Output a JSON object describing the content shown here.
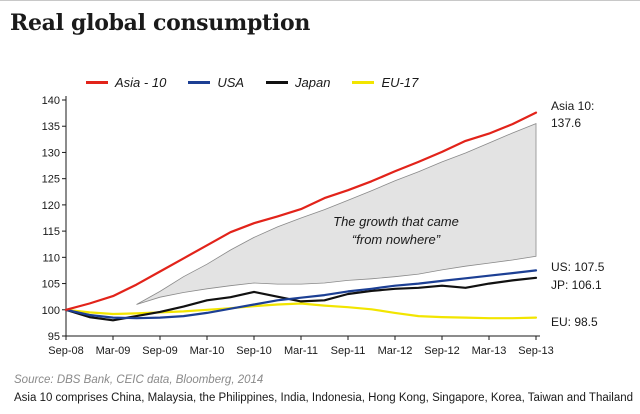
{
  "title": "Real global consumption",
  "source": "Source: DBS Bank, CEIC data, Bloomberg, 2014",
  "footnote": "Asia 10 comprises China, Malaysia, the Philippines, India, Indonesia, Hong Kong, Singapore, Korea, Taiwan and Thailand",
  "colors": {
    "asia": "#e2231a",
    "usa": "#1c3f94",
    "japan": "#111111",
    "eu": "#f2e500",
    "gap_fill": "#e3e3e3",
    "gap_stroke": "#8a8a8a"
  },
  "chart_data": {
    "type": "line",
    "title": "Real global consumption",
    "ylim": [
      95,
      140
    ],
    "yticks": [
      95,
      100,
      105,
      110,
      115,
      120,
      125,
      130,
      135,
      140
    ],
    "xtick_labels": [
      "Sep-08",
      "Mar-09",
      "Sep-09",
      "Mar-10",
      "Sep-10",
      "Mar-11",
      "Sep-11",
      "Mar-12",
      "Sep-12",
      "Mar-13",
      "Sep-13"
    ],
    "x": [
      "Sep-08",
      "Dec-08",
      "Mar-09",
      "Jun-09",
      "Sep-09",
      "Dec-09",
      "Mar-10",
      "Jun-10",
      "Sep-10",
      "Dec-10",
      "Mar-11",
      "Jun-11",
      "Sep-11",
      "Dec-11",
      "Mar-12",
      "Jun-12",
      "Sep-12",
      "Dec-12",
      "Mar-13",
      "Jun-13",
      "Sep-13"
    ],
    "series": [
      {
        "name": "Asia - 10",
        "color": "#e2231a",
        "values": [
          100,
          101.2,
          102.6,
          104.8,
          107.3,
          109.8,
          112.3,
          114.8,
          116.5,
          117.8,
          119.2,
          121.3,
          122.8,
          124.5,
          126.4,
          128.2,
          130.1,
          132.2,
          133.6,
          135.4,
          137.6
        ]
      },
      {
        "name": "USA",
        "color": "#1c3f94",
        "values": [
          100,
          99.0,
          98.5,
          98.4,
          98.5,
          98.8,
          99.4,
          100.2,
          101.0,
          101.8,
          102.3,
          102.8,
          103.5,
          104.0,
          104.6,
          105.0,
          105.5,
          106.0,
          106.5,
          107.0,
          107.5
        ]
      },
      {
        "name": "Japan",
        "color": "#111111",
        "values": [
          100,
          98.6,
          98.0,
          98.8,
          99.6,
          100.6,
          101.8,
          102.4,
          103.4,
          102.5,
          101.6,
          101.8,
          103.0,
          103.6,
          104.0,
          104.2,
          104.6,
          104.2,
          105.0,
          105.6,
          106.1
        ]
      },
      {
        "name": "EU-17",
        "color": "#f2e500",
        "values": [
          100,
          99.5,
          99.2,
          99.3,
          99.5,
          99.7,
          100.0,
          100.3,
          100.7,
          101.0,
          101.2,
          100.8,
          100.5,
          100.1,
          99.4,
          98.8,
          98.6,
          98.5,
          98.4,
          98.4,
          98.5
        ]
      }
    ],
    "gap_band": {
      "x": [
        "Jun-09",
        "Sep-09",
        "Dec-09",
        "Mar-10",
        "Jun-10",
        "Sep-10",
        "Dec-10",
        "Mar-11",
        "Jun-11",
        "Sep-11",
        "Dec-11",
        "Mar-12",
        "Jun-12",
        "Sep-12",
        "Dec-12",
        "Mar-13",
        "Jun-13",
        "Sep-13"
      ],
      "upper": [
        101.0,
        103.5,
        106.3,
        108.7,
        111.4,
        113.8,
        115.8,
        117.5,
        119.1,
        120.9,
        122.7,
        124.6,
        126.3,
        128.2,
        129.9,
        131.8,
        133.7,
        135.5
      ],
      "lower": [
        101.0,
        102.4,
        103.3,
        104.0,
        104.6,
        105.1,
        104.9,
        104.9,
        105.1,
        105.6,
        105.9,
        106.3,
        106.8,
        107.6,
        108.3,
        108.9,
        109.5,
        110.2
      ],
      "label_line1": "The growth that came",
      "label_line2": "“from nowhere”"
    },
    "end_labels": [
      {
        "line1": "Asia 10:",
        "line2": "137.6"
      },
      {
        "text": "US: 107.5"
      },
      {
        "text": "JP: 106.1"
      },
      {
        "text": "EU: 98.5"
      }
    ]
  }
}
